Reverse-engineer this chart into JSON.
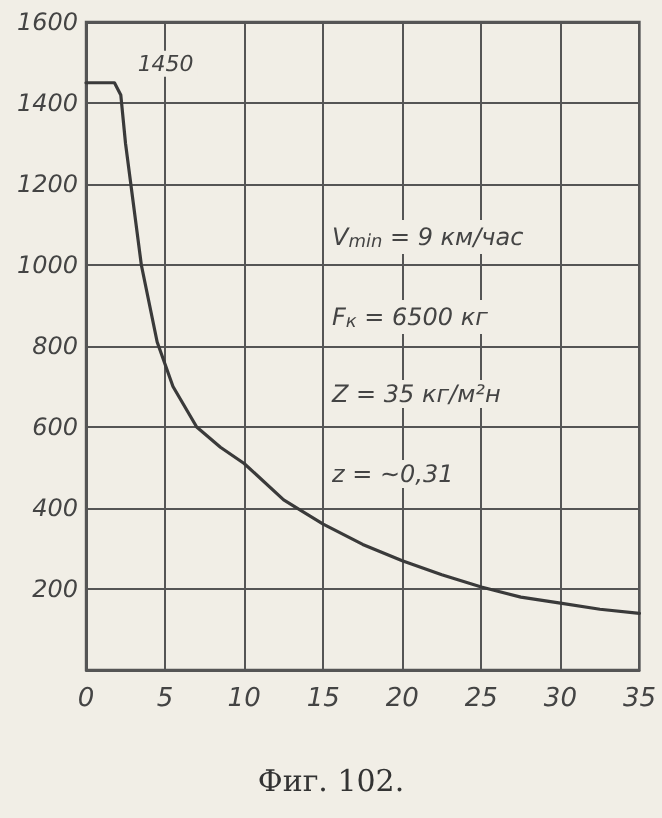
{
  "chart_data": {
    "type": "line",
    "title": "Фиг. 102.",
    "x": [
      0,
      1.8,
      2.2,
      2.5,
      3,
      3.5,
      4.5,
      5.5,
      7,
      8.5,
      10,
      12.5,
      15,
      17.5,
      20,
      22.5,
      25,
      27.5,
      30,
      32.5,
      35
    ],
    "series": [
      {
        "color": "#3a3a3a",
        "values": [
          1450,
          1450,
          1420,
          1300,
          1150,
          1000,
          810,
          700,
          600,
          550,
          510,
          420,
          360,
          310,
          270,
          235,
          205,
          180,
          165,
          150,
          140
        ]
      }
    ],
    "xlim": [
      0,
      35
    ],
    "xticks": [
      0,
      5,
      10,
      15,
      20,
      25,
      30,
      35
    ],
    "ylim": [
      0,
      1600
    ],
    "yticks": [
      {
        "value": 0,
        "label": null
      },
      200,
      400,
      600,
      800,
      1000,
      1200,
      1400,
      1600
    ],
    "grid": true,
    "marker": "none",
    "line_style": "solid",
    "annotations": [
      {
        "text": "1450",
        "x": 2,
        "y": 1450
      },
      "V$_{min}$ = 9 км/час",
      "F$_{к}$ = 6500 кг",
      "Z = 35 кг/м²н",
      "z = ~0,31"
    ]
  }
}
